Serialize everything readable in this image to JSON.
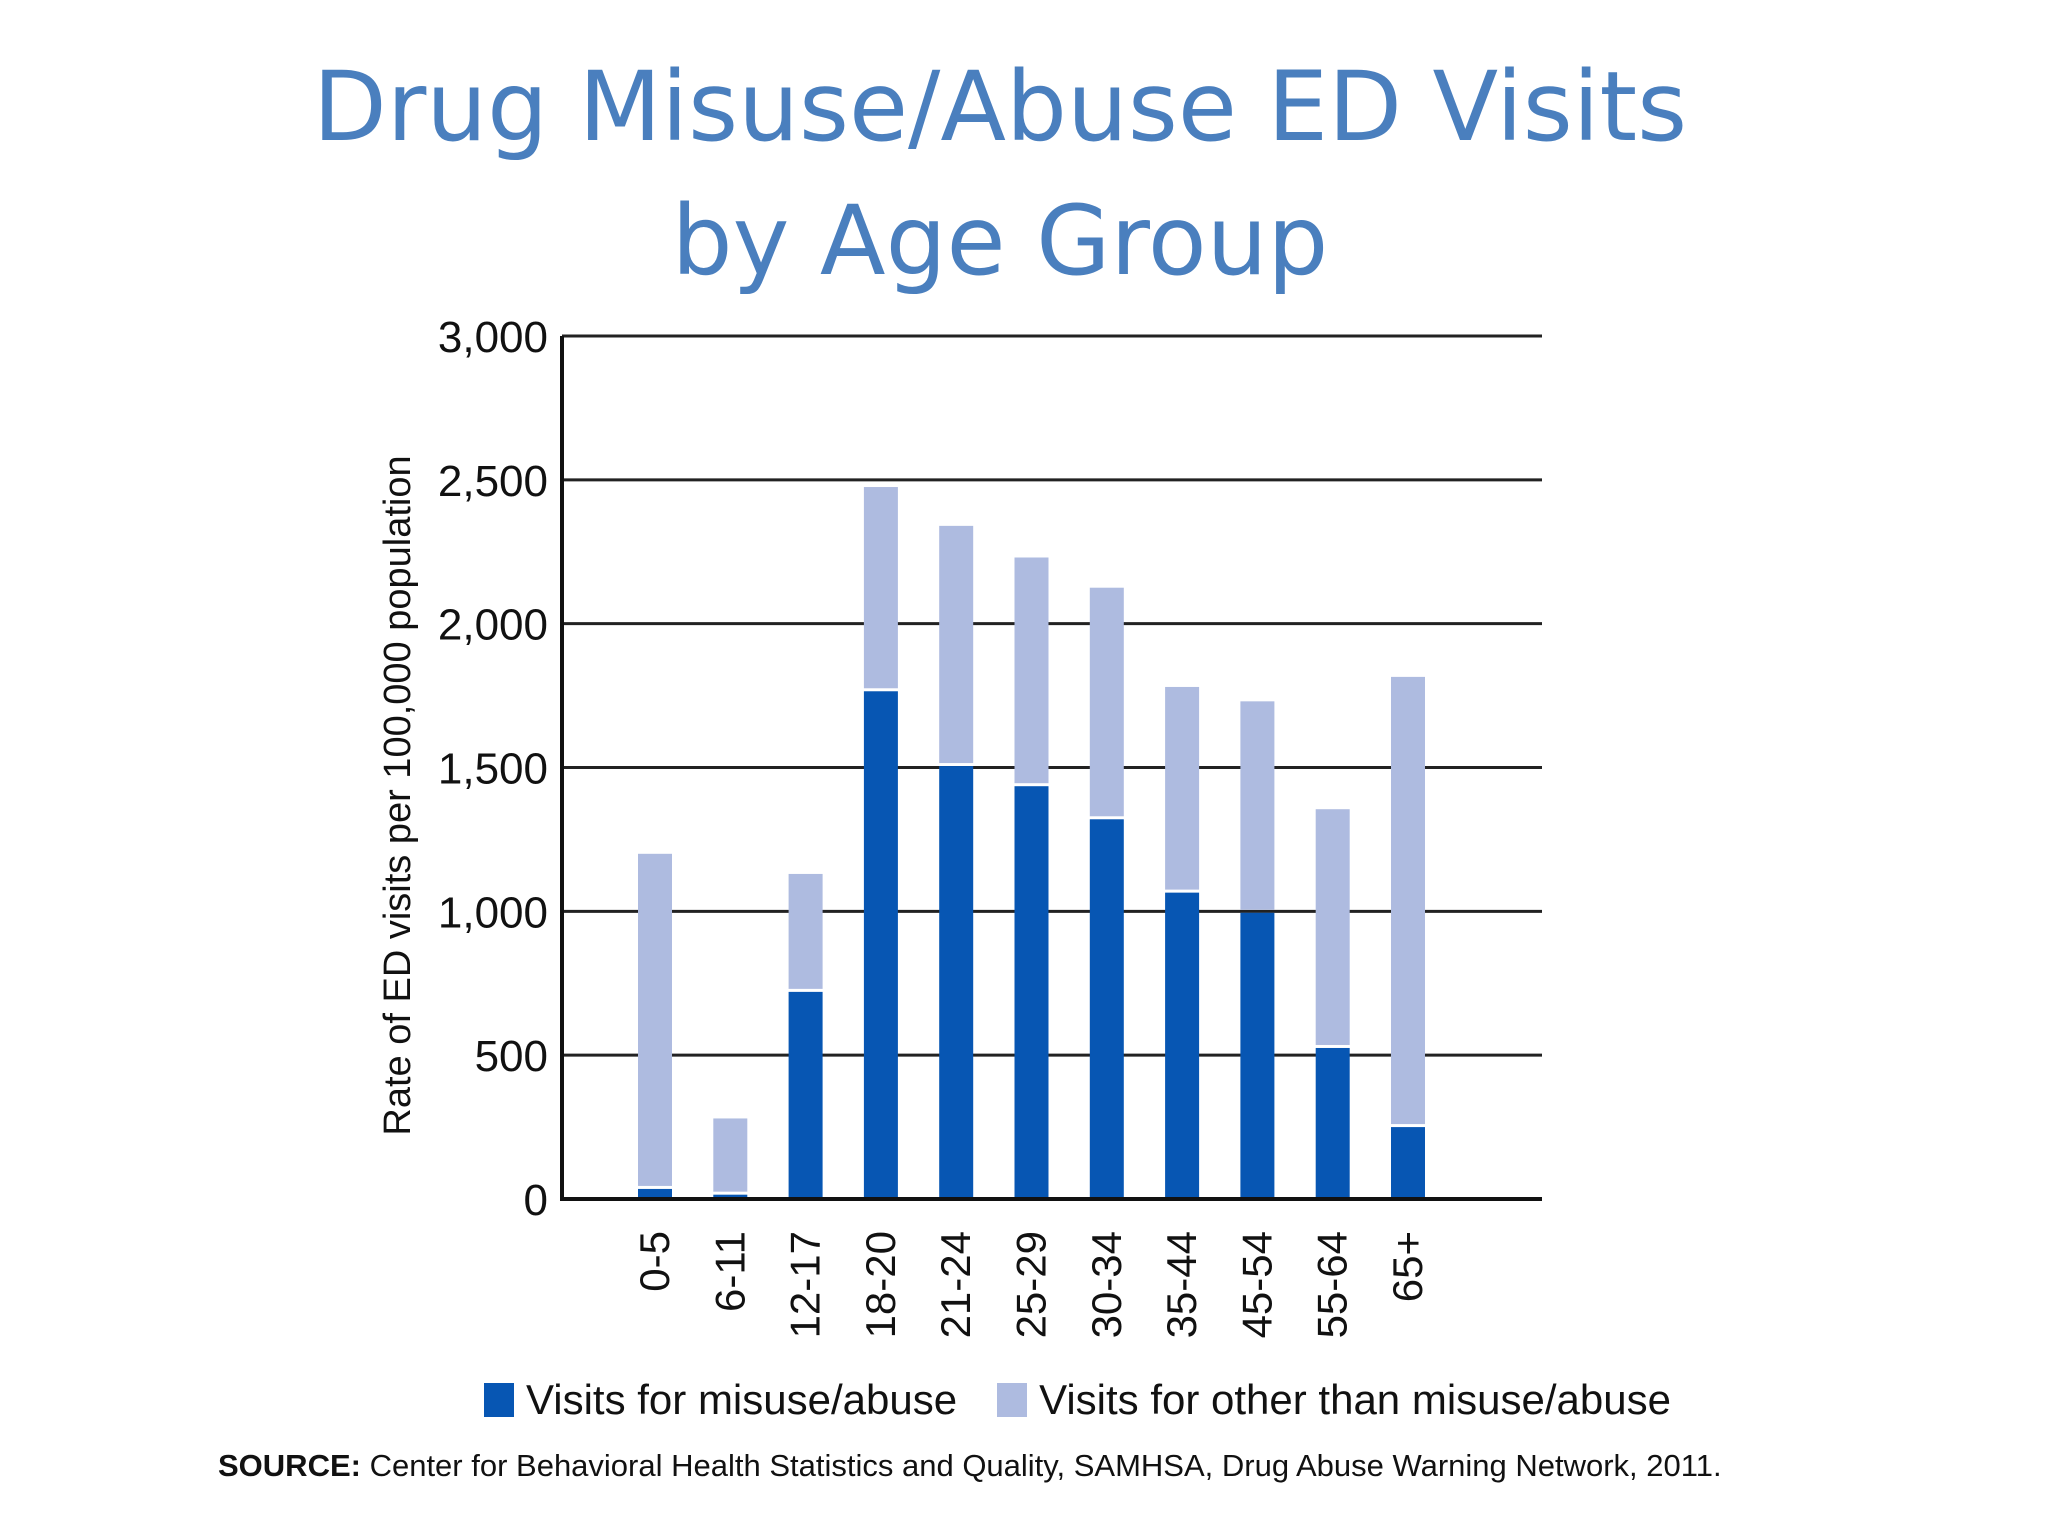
{
  "title_line1": "Drug Misuse/Abuse ED Visits",
  "title_line2": "by Age Group",
  "source_label": "SOURCE:",
  "source_text": "Center for Behavioral Health Statistics and Quality, SAMHSA, Drug Abuse Warning Network, 2011.",
  "colors": {
    "misuse": "#0756b3",
    "other": "#aebbe0",
    "title": "#4a7fbe"
  },
  "chart_data": {
    "type": "bar",
    "stacked": true,
    "ylabel": "Rate of ED visits per 100,000 population",
    "xlabel": "",
    "ylim": [
      0,
      3000
    ],
    "yticks": [
      0,
      500,
      1000,
      1500,
      2000,
      2500,
      3000
    ],
    "ytick_labels": [
      "0",
      "500",
      "1,000",
      "1,500",
      "2,000",
      "2,500",
      "3,000"
    ],
    "grid": true,
    "categories": [
      "0-5",
      "6-11",
      "12-17",
      "18-20",
      "21-24",
      "25-29",
      "30-34",
      "35-44",
      "45-54",
      "55-64",
      "65+"
    ],
    "series": [
      {
        "name": "Visits for misuse/abuse",
        "values": [
          35,
          15,
          720,
          1765,
          1505,
          1435,
          1320,
          1065,
          995,
          525,
          250
        ]
      },
      {
        "name": "Visits for other than misuse/abuse",
        "values": [
          1165,
          265,
          410,
          710,
          835,
          795,
          805,
          715,
          735,
          830,
          1565
        ]
      }
    ],
    "legend_position": "bottom"
  }
}
